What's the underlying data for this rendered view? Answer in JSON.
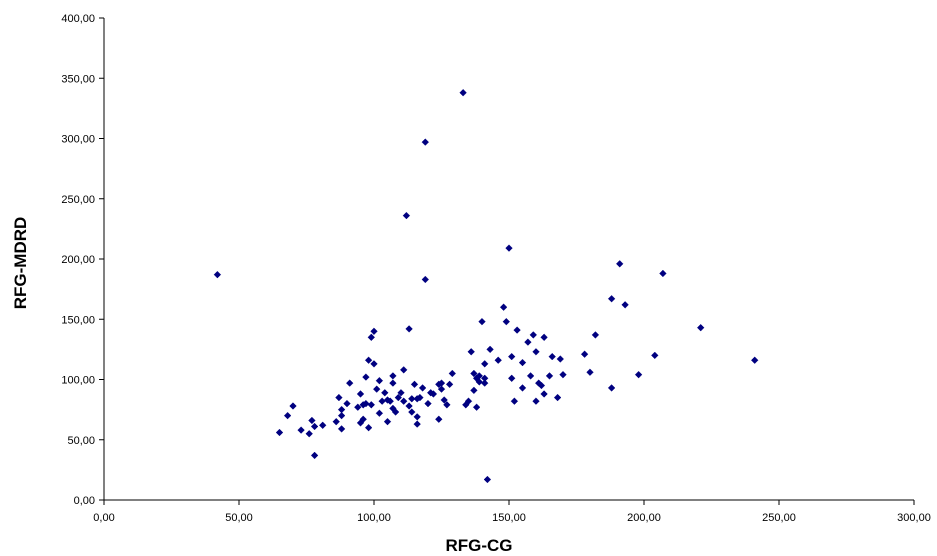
{
  "chart_data": {
    "type": "scatter",
    "title": "",
    "xlabel": "RFG-CG",
    "ylabel": "RFG-MDRD",
    "xlim": [
      0,
      300
    ],
    "ylim": [
      0,
      400
    ],
    "x_ticks": [
      0,
      50,
      100,
      150,
      200,
      250,
      300
    ],
    "y_ticks": [
      0,
      50,
      100,
      150,
      200,
      250,
      300,
      350,
      400
    ],
    "x_tick_labels": [
      "0,00",
      "50,00",
      "100,00",
      "150,00",
      "200,00",
      "250,00",
      "300,00"
    ],
    "y_tick_labels": [
      "0,00",
      "50,00",
      "100,00",
      "150,00",
      "200,00",
      "250,00",
      "300,00",
      "350,00",
      "400,00"
    ],
    "grid": false,
    "legend": "none",
    "marker": "diamond",
    "marker_color": "#000080",
    "series": [
      {
        "points": [
          [
            42,
            187
          ],
          [
            65,
            56
          ],
          [
            68,
            70
          ],
          [
            70,
            78
          ],
          [
            73,
            58
          ],
          [
            76,
            55
          ],
          [
            77,
            66
          ],
          [
            78,
            37
          ],
          [
            78,
            61
          ],
          [
            81,
            62
          ],
          [
            86,
            65
          ],
          [
            87,
            85
          ],
          [
            88,
            59
          ],
          [
            88,
            75
          ],
          [
            88,
            70
          ],
          [
            90,
            80
          ],
          [
            91,
            97
          ],
          [
            94,
            77
          ],
          [
            95,
            88
          ],
          [
            95,
            64
          ],
          [
            96,
            67
          ],
          [
            96,
            79
          ],
          [
            97,
            102
          ],
          [
            97,
            80
          ],
          [
            98,
            116
          ],
          [
            98,
            60
          ],
          [
            99,
            135
          ],
          [
            99,
            79
          ],
          [
            100,
            140
          ],
          [
            100,
            113
          ],
          [
            101,
            92
          ],
          [
            102,
            99
          ],
          [
            102,
            72
          ],
          [
            103,
            82
          ],
          [
            104,
            89
          ],
          [
            105,
            83
          ],
          [
            105,
            65
          ],
          [
            106,
            82
          ],
          [
            107,
            76
          ],
          [
            107,
            103
          ],
          [
            107,
            97
          ],
          [
            108,
            73
          ],
          [
            109,
            85
          ],
          [
            110,
            89
          ],
          [
            111,
            108
          ],
          [
            111,
            82
          ],
          [
            112,
            236
          ],
          [
            113,
            142
          ],
          [
            113,
            78
          ],
          [
            114,
            73
          ],
          [
            114,
            84
          ],
          [
            115,
            96
          ],
          [
            116,
            84
          ],
          [
            116,
            69
          ],
          [
            116,
            63
          ],
          [
            117,
            85
          ],
          [
            118,
            93
          ],
          [
            119,
            297
          ],
          [
            119,
            183
          ],
          [
            120,
            80
          ],
          [
            121,
            89
          ],
          [
            122,
            88
          ],
          [
            124,
            67
          ],
          [
            124,
            96
          ],
          [
            125,
            92
          ],
          [
            125,
            97
          ],
          [
            126,
            83
          ],
          [
            127,
            79
          ],
          [
            128,
            96
          ],
          [
            129,
            105
          ],
          [
            133,
            338
          ],
          [
            134,
            79
          ],
          [
            135,
            82
          ],
          [
            136,
            123
          ],
          [
            137,
            91
          ],
          [
            137,
            105
          ],
          [
            138,
            101
          ],
          [
            138,
            77
          ],
          [
            139,
            98
          ],
          [
            139,
            103
          ],
          [
            140,
            148
          ],
          [
            141,
            101
          ],
          [
            141,
            97
          ],
          [
            141,
            113
          ],
          [
            142,
            17
          ],
          [
            143,
            125
          ],
          [
            146,
            116
          ],
          [
            148,
            160
          ],
          [
            149,
            148
          ],
          [
            150,
            209
          ],
          [
            151,
            119
          ],
          [
            151,
            101
          ],
          [
            152,
            82
          ],
          [
            153,
            141
          ],
          [
            155,
            93
          ],
          [
            155,
            114
          ],
          [
            157,
            131
          ],
          [
            158,
            103
          ],
          [
            159,
            137
          ],
          [
            160,
            123
          ],
          [
            160,
            82
          ],
          [
            161,
            97
          ],
          [
            162,
            95
          ],
          [
            163,
            135
          ],
          [
            163,
            88
          ],
          [
            165,
            103
          ],
          [
            166,
            119
          ],
          [
            168,
            85
          ],
          [
            169,
            117
          ],
          [
            170,
            104
          ],
          [
            178,
            121
          ],
          [
            180,
            106
          ],
          [
            182,
            137
          ],
          [
            188,
            93
          ],
          [
            188,
            167
          ],
          [
            191,
            196
          ],
          [
            193,
            162
          ],
          [
            198,
            104
          ],
          [
            204,
            120
          ],
          [
            207,
            188
          ],
          [
            221,
            143
          ],
          [
            241,
            116
          ]
        ]
      }
    ]
  }
}
